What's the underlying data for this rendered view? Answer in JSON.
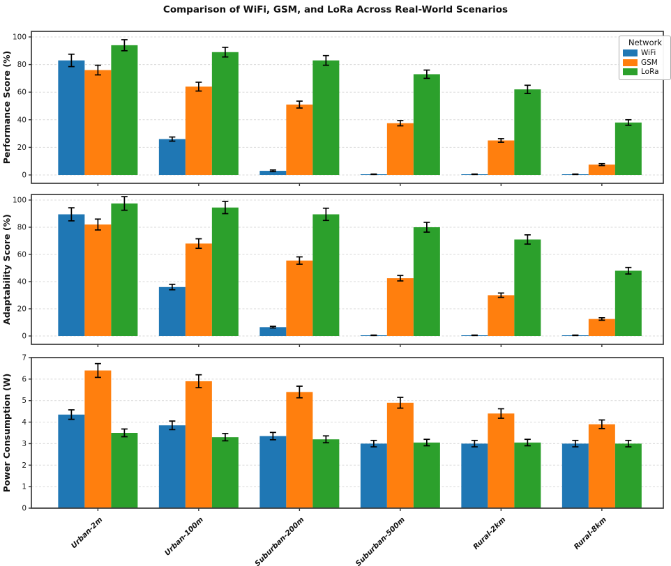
{
  "title": "Comparison of WiFi, GSM, and LoRa Across Real-World Scenarios",
  "legend": {
    "title": "Network",
    "entries": [
      {
        "label": "WiFi",
        "color": "#1f77b4"
      },
      {
        "label": "GSM",
        "color": "#ff7f0e"
      },
      {
        "label": "LoRa",
        "color": "#2ca02c"
      }
    ]
  },
  "chart_data": [
    {
      "type": "bar",
      "ylabel": "Performance Score (%)",
      "ylim": [
        0,
        100
      ],
      "yticks": [
        0,
        20,
        40,
        60,
        80,
        100
      ],
      "grid": true,
      "legend_position": "upper right",
      "categories": [
        "Urban-2m",
        "Urban-100m",
        "Suburban-200m",
        "Suburban-500m",
        "Rural-2km",
        "Rural-8km"
      ],
      "series": [
        {
          "name": "WiFi",
          "color": "#1f77b4",
          "values": [
            83,
            26,
            3,
            0.5,
            0.5,
            0.5
          ],
          "errors": [
            4.5,
            1.5,
            0.6,
            0.15,
            0.15,
            0.15
          ]
        },
        {
          "name": "GSM",
          "color": "#ff7f0e",
          "values": [
            76,
            64,
            51,
            37.5,
            25,
            7.5
          ],
          "errors": [
            3.5,
            3.2,
            2.5,
            1.9,
            1.3,
            0.7
          ]
        },
        {
          "name": "LoRa",
          "color": "#2ca02c",
          "values": [
            94,
            89,
            83,
            73,
            62,
            38
          ],
          "errors": [
            4,
            3.5,
            3.5,
            3,
            3,
            2
          ]
        }
      ]
    },
    {
      "type": "bar",
      "ylabel": "Adaptability Score (%)",
      "ylim": [
        0,
        100
      ],
      "yticks": [
        0,
        20,
        40,
        60,
        80,
        100
      ],
      "grid": true,
      "categories": [
        "Urban-2m",
        "Urban-100m",
        "Suburban-200m",
        "Suburban-500m",
        "Rural-2km",
        "Rural-8km"
      ],
      "series": [
        {
          "name": "WiFi",
          "color": "#1f77b4",
          "values": [
            89.5,
            36,
            6.5,
            0.5,
            0.5,
            0.5
          ],
          "errors": [
            4.8,
            2,
            0.6,
            0.15,
            0.15,
            0.15
          ]
        },
        {
          "name": "GSM",
          "color": "#ff7f0e",
          "values": [
            82,
            68,
            55.5,
            42.5,
            30,
            12.5
          ],
          "errors": [
            4,
            3.5,
            2.7,
            2,
            1.6,
            0.9
          ]
        },
        {
          "name": "LoRa",
          "color": "#2ca02c",
          "values": [
            97.5,
            94.5,
            89.5,
            80,
            71,
            48
          ],
          "errors": [
            5,
            4.5,
            4.5,
            3.6,
            3.4,
            2.4
          ]
        }
      ]
    },
    {
      "type": "bar",
      "ylabel": "Power Consumption (W)",
      "ylim": [
        0,
        7
      ],
      "yticks": [
        0,
        1,
        2,
        3,
        4,
        5,
        6,
        7
      ],
      "grid": true,
      "categories": [
        "Urban-2m",
        "Urban-100m",
        "Suburban-200m",
        "Suburban-500m",
        "Rural-2km",
        "Rural-8km"
      ],
      "series": [
        {
          "name": "WiFi",
          "color": "#1f77b4",
          "values": [
            4.35,
            3.85,
            3.35,
            3.0,
            3.0,
            3.0
          ],
          "errors": [
            0.22,
            0.2,
            0.17,
            0.15,
            0.15,
            0.15
          ]
        },
        {
          "name": "GSM",
          "color": "#ff7f0e",
          "values": [
            6.4,
            5.9,
            5.4,
            4.9,
            4.4,
            3.9
          ],
          "errors": [
            0.32,
            0.3,
            0.27,
            0.25,
            0.22,
            0.2
          ]
        },
        {
          "name": "LoRa",
          "color": "#2ca02c",
          "values": [
            3.5,
            3.3,
            3.2,
            3.05,
            3.05,
            3.0
          ],
          "errors": [
            0.18,
            0.17,
            0.16,
            0.15,
            0.15,
            0.15
          ]
        }
      ]
    }
  ]
}
